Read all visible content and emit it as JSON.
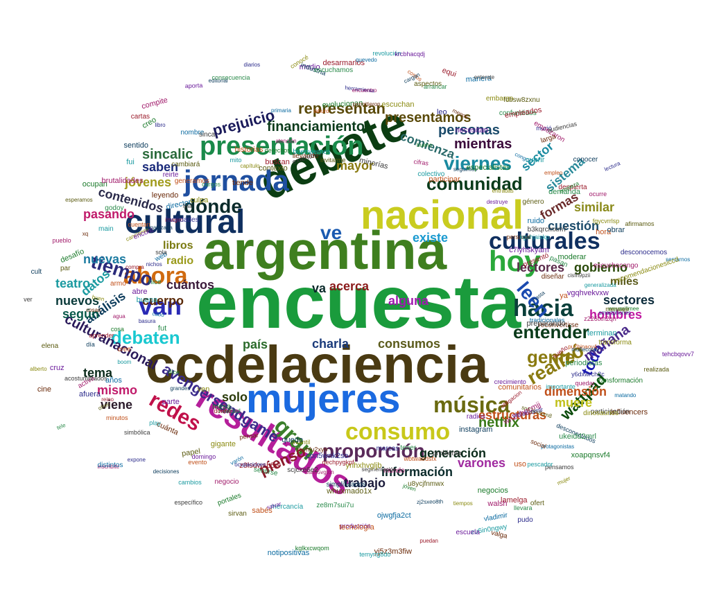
{
  "words": [
    {
      "text": "encuesta",
      "color": "#1a9b3c"
    },
    {
      "text": "argentina",
      "color": "#3f7f1f"
    },
    {
      "text": "ccdelaciencia",
      "color": "#4a3a12"
    },
    {
      "text": "debate",
      "color": "#0b3d12"
    },
    {
      "text": "nacional",
      "color": "#c9cc1f"
    },
    {
      "text": "mujeres",
      "color": "#1b6ae0"
    },
    {
      "text": "resultados",
      "color": "#b51f9a"
    },
    {
      "text": "cultural",
      "color": "#0f2f5f"
    },
    {
      "text": "jornada",
      "color": "#1f4fa0"
    },
    {
      "text": "presentación",
      "color": "#1a8a4a"
    },
    {
      "text": "hoy",
      "color": "#2aa83a"
    },
    {
      "text": "van",
      "color": "#2a2ab5"
    },
    {
      "text": "ahora",
      "color": "#d06a10"
    },
    {
      "text": "culturales",
      "color": "#0f2f5f"
    },
    {
      "text": "hacia",
      "color": "#0a3f3a"
    },
    {
      "text": "consumo",
      "color": "#c8c81a"
    },
    {
      "text": "música",
      "color": "#6a6a10"
    },
    {
      "text": "gran",
      "color": "#3a7f2a"
    },
    {
      "text": "proporción",
      "color": "#5a2a5a"
    },
    {
      "text": "redes",
      "color": "#c0104a"
    },
    {
      "text": "debaten",
      "color": "#1ac8d0"
    },
    {
      "text": "tiempo",
      "color": "#2a2a7a"
    },
    {
      "text": "comunidad",
      "color": "#0a3a1a"
    },
    {
      "text": "entender",
      "color": "#0a3a1a"
    },
    {
      "text": "dónde",
      "color": "#0a2a2a"
    },
    {
      "text": "gente",
      "color": "#8a7a10"
    },
    {
      "text": "leen",
      "color": "#1a4ab0"
    },
    {
      "text": "viernes",
      "color": "#1a8aa0"
    },
    {
      "text": "ve",
      "color": "#1a5ab0"
    },
    {
      "text": "realizó",
      "color": "#8a7a10"
    },
    {
      "text": "culturanacional",
      "color": "#2a1a5a"
    },
    {
      "text": "avengersendgame",
      "color": "#3a2a8a"
    },
    {
      "text": "pienso",
      "color": "#8a1a2a"
    },
    {
      "text": "netflix",
      "color": "#3a7a1a"
    },
    {
      "text": "wattpad",
      "color": "#0a4a0a"
    },
    {
      "text": "toda",
      "color": "#1a1ab0"
    },
    {
      "text": "mañana",
      "color": "#4a2a8a"
    },
    {
      "text": "representan",
      "color": "#5a4a0a"
    },
    {
      "text": "presentamos",
      "color": "#5a4a0a"
    },
    {
      "text": "financiamiento",
      "color": "#0a3a1a"
    },
    {
      "text": "prejuicio",
      "color": "#1a1a5a"
    },
    {
      "text": "comienza",
      "color": "#2a6a6a"
    },
    {
      "text": "mientras",
      "color": "#3a0a3a"
    },
    {
      "text": "personas",
      "color": "#1a4a6a"
    },
    {
      "text": "sincalic",
      "color": "#2a6a3a"
    },
    {
      "text": "saben",
      "color": "#1a2a7a"
    },
    {
      "text": "jóvenes",
      "color": "#a09a1a"
    },
    {
      "text": "mayor",
      "color": "#8a7a10"
    },
    {
      "text": "contenidos",
      "color": "#2a2a4a"
    },
    {
      "text": "sector",
      "color": "#1a8aa0"
    },
    {
      "text": "sistema",
      "color": "#2a8a9a"
    },
    {
      "text": "formas",
      "color": "#6a2a2a"
    },
    {
      "text": "similar",
      "color": "#8a8a1a"
    },
    {
      "text": "cuestión",
      "color": "#1a4a6a"
    },
    {
      "text": "gobierno",
      "color": "#2a4a0a"
    },
    {
      "text": "miles",
      "color": "#5a5a1a"
    },
    {
      "text": "lectores",
      "color": "#5a2a4a"
    },
    {
      "text": "libros",
      "color": "#7a7a10"
    },
    {
      "text": "radio",
      "color": "#9a9a1a"
    },
    {
      "text": "pasando",
      "color": "#c01a6a"
    },
    {
      "text": "nuevas",
      "color": "#1a7aa0"
    },
    {
      "text": "datos",
      "color": "#1a9aa0"
    },
    {
      "text": "teatro",
      "color": "#1a9aa0"
    },
    {
      "text": "cuántos",
      "color": "#3a1a3a"
    },
    {
      "text": "va",
      "color": "#0a2a2a"
    },
    {
      "text": "acerca",
      "color": "#8a1a1a"
    },
    {
      "text": "existe",
      "color": "#1a9ad0"
    },
    {
      "text": "alguna",
      "color": "#a01ab0"
    },
    {
      "text": "análisis",
      "color": "#0a3a5a"
    },
    {
      "text": "cuerpo",
      "color": "#5a2a0a"
    },
    {
      "text": "nuevos",
      "color": "#0a3a3a"
    },
    {
      "text": "según",
      "color": "#0a5a4a"
    },
    {
      "text": "sectores",
      "color": "#0a2a3a"
    },
    {
      "text": "hombres",
      "color": "#c01aa0"
    },
    {
      "text": "país",
      "color": "#2a6a2a"
    },
    {
      "text": "charla",
      "color": "#1a3a7a"
    },
    {
      "text": "consumos",
      "color": "#5a5a1a"
    },
    {
      "text": "tema",
      "color": "#0a2a1a"
    },
    {
      "text": "mismo",
      "color": "#c01a6a"
    },
    {
      "text": "solo",
      "color": "#2a3a0a"
    },
    {
      "text": "viene",
      "color": "#2a1a2a"
    },
    {
      "text": "dimensión",
      "color": "#c0501a"
    },
    {
      "text": "muere",
      "color": "#c0c01a"
    },
    {
      "text": "estructuras",
      "color": "#c0501a"
    },
    {
      "text": "generación",
      "color": "#0a2a1a"
    },
    {
      "text": "varones",
      "color": "#a02aa0"
    },
    {
      "text": "información",
      "color": "#0a2a2a"
    },
    {
      "text": "trabajo",
      "color": "#1a1a3a"
    }
  ],
  "small_words": [
    "weuawlimee",
    "smartphones",
    "z226txh2qh",
    "tradicionales",
    "reconvertirse",
    "preparando",
    "terminan",
    "transforma",
    "tehcbqovv7",
    "pu7binaoy4",
    "muñecotes",
    "realizada",
    "periodistas",
    "sueño",
    "transformación",
    "y6dxwrch2c",
    "quedar",
    "matando",
    "influencers",
    "participación",
    "importante",
    "dinosaurios",
    "crecimiento",
    "comunitarios",
    "desconectados",
    "sn63ks8qm8",
    "ukeidd2mrl",
    "obligacion",
    "xoapqnsvf4",
    "vh5dbrbmlr",
    "wn2ohgcmjj",
    "protagonistas",
    "social",
    "pensamos",
    "pescador",
    "mujer",
    "radios",
    "uso",
    "instagram",
    "ofert",
    "llevara",
    "lamelga",
    "negocios",
    "pudo",
    "walsh",
    "vladimir",
    "valga",
    "problema",
    "zu6in0ngwy",
    "tiempos",
    "escuela",
    "wbtwaedsfx",
    "zj2sxeo8th",
    "u8ycjfnmwx",
    "tener",
    "puedan",
    "jóven",
    "marcas",
    "mundo",
    "ojwgfja2ct",
    "yj5z3m3fiw",
    "segmentación",
    "temyrtg8do",
    "ynhxhvgljb",
    "producción",
    "tecnología",
    "simplificados",
    "whuxmado1x",
    "ze8m7sui7u",
    "qechpygkpf",
    "kglkxcwqom",
    "cpn5wnk2so",
    "bsa45vgton",
    "notipositivas",
    "zbvhfu2xyn",
    "scjcxe6e2",
    "mercancía",
    "infantil",
    "salvar",
    "sabés",
    "quedo",
    "sirvan",
    "sentirse",
    "z8lsdwsb5w",
    "portales",
    "ocupaciones",
    "negocio",
    "varón",
    "pensar",
    "específico",
    "cambios",
    "gigante",
    "domingo",
    "evento",
    "decisiones",
    "papel",
    "navidad",
    "dormir",
    "mesa",
    "expone",
    "inscribite",
    "distintos",
    "cuánta",
    "simbólica",
    "play",
    "ven",
    "parte",
    "minutos",
    "grandes",
    "ofrec",
    "tele",
    "reino",
    "dice",
    "afuera",
    "activa",
    "años",
    "cine",
    "acostumbrados",
    "boom",
    "alberto",
    "cruz",
    "cree",
    "día",
    "elena",
    "fut",
    "aprender",
    "cosa",
    "basura",
    "agua",
    "cabo",
    "cosas",
    "ver",
    "buena",
    "buen",
    "abre",
    "armó",
    "cult",
    "par",
    "hice",
    "compra",
    "desafío",
    "nichos",
    "pueblo",
    "web",
    "xq",
    "sola",
    "main",
    "canciones",
    "encont",
    "cuentan",
    "organizada",
    "esperamos",
    "godoy",
    "imagen",
    "ocupan",
    "facilidades",
    "brutalidades",
    "director",
    "leyendo",
    "fina",
    "fui",
    "culpa",
    "reirte",
    "generamos",
    "sentido",
    "cambiará",
    "cargos",
    "cartas",
    "creo",
    "libro",
    "compite",
    "nombre",
    "tiende",
    "sinca",
    "mito",
    "capítulo",
    "aporta",
    "historias",
    "editorial",
    "contexto",
    "consecuencia",
    "buscan",
    "derechos",
    "diarios",
    "atención",
    "primaria",
    "llevando",
    "extendido",
    "buenviernes",
    "conocé",
    "medio",
    "laburo",
    "industria",
    "invitarme",
    "escuchamos",
    "desarmarlos",
    "evolucionan",
    "herramienta",
    "encuentro",
    "quevedo",
    "permitieron",
    "minorías",
    "revolución",
    "escuchan",
    "krcbhacqdj",
    "costos",
    "cargan",
    "aspectos",
    "arrancar",
    "equi",
    "bueno",
    "leo",
    "cifras",
    "manera",
    "menos",
    "enterate",
    "colectivo",
    "embargo",
    "necesitan",
    "participar",
    "seguimos",
    "fcbsw8zxnu",
    "confundidos",
    "empleados",
    "especialistas",
    "murió",
    "empezaron",
    "congo",
    "larga",
    "audiencias",
    "cubrir",
    "entradas",
    "destruye",
    "empleo",
    "conocer",
    "género",
    "demanda",
    "despierta",
    "empieza",
    "lectura",
    "ocurre",
    "ruido",
    "personal",
    "b3kqrcmxm7",
    "kguhjaiskp",
    "fgycvrrlsp",
    "c7lyhskyam",
    "hora",
    "obrar",
    "afirmamos",
    "pasan",
    "presentó",
    "moderar",
    "desconocemos",
    "escuchocongo",
    "sentarnos",
    "diseñar",
    "cisfn9pzii",
    "generalizada",
    "recomendacionesiccd",
    "vgqhvekvxw",
    "ya",
    "hasta",
    "mensaje"
  ]
}
